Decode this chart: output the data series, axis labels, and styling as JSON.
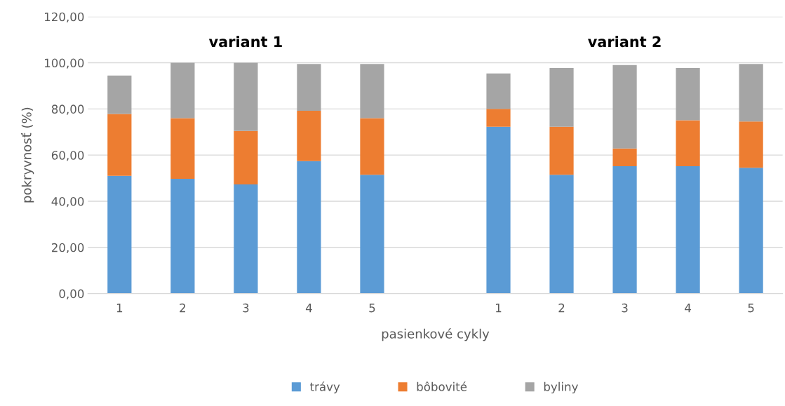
{
  "chart_data": {
    "type": "bar",
    "stacked": true,
    "xlabel": "pasienkové cykly",
    "ylabel": "pokryvnosť (%)",
    "annotations": [
      "variant 1",
      "variant 2"
    ],
    "categories": [
      "1",
      "2",
      "3",
      "4",
      "5",
      null,
      "1",
      "2",
      "3",
      "4",
      "5"
    ],
    "series": [
      {
        "name": "trávy",
        "color": "#5b9bd5",
        "values": [
          51.0,
          49.7,
          47.3,
          57.4,
          51.5,
          null,
          72.3,
          51.5,
          55.2,
          55.2,
          54.5
        ]
      },
      {
        "name": "bôbovité",
        "color": "#ed7d31",
        "values": [
          26.8,
          26.3,
          23.2,
          21.8,
          24.5,
          null,
          7.7,
          20.8,
          7.7,
          19.9,
          20.1
        ]
      },
      {
        "name": "byliny",
        "color": "#a5a5a5",
        "values": [
          16.7,
          24.0,
          29.5,
          20.3,
          23.5,
          null,
          15.4,
          25.4,
          36.1,
          22.6,
          24.9
        ]
      }
    ],
    "ylim": [
      0,
      120
    ],
    "yticks": [
      {
        "value": 0,
        "label": "0,00"
      },
      {
        "value": 20,
        "label": "20,00"
      },
      {
        "value": 40,
        "label": "40,00"
      },
      {
        "value": 60,
        "label": "60,00"
      },
      {
        "value": 80,
        "label": "80,00"
      },
      {
        "value": 100,
        "label": "100,00"
      },
      {
        "value": 120,
        "label": "120,00"
      }
    ],
    "grid": "y",
    "legend": "bottom"
  }
}
